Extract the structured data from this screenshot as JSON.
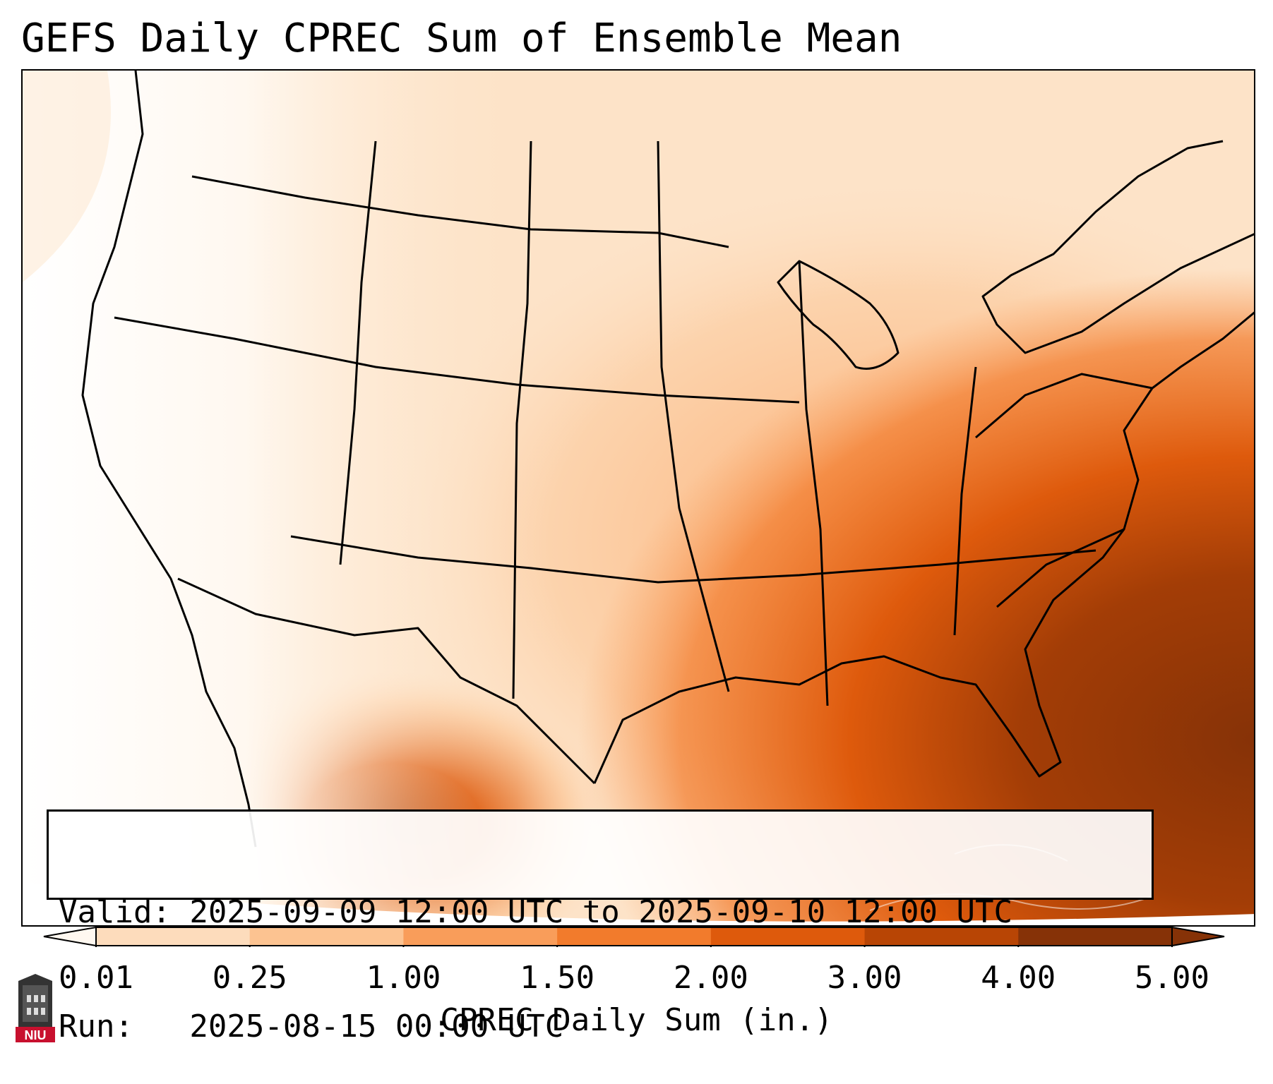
{
  "title": "GEFS Daily CPREC Sum of Ensemble Mean",
  "info": {
    "valid": "Valid: 2025-09-09 12:00 UTC to 2025-09-10 12:00 UTC",
    "run": "Run:   2025-08-15 00:00 UTC"
  },
  "colorbar": {
    "label": "CPREC Daily Sum (in.)",
    "ticks": [
      "0.01",
      "0.25",
      "1.00",
      "1.50",
      "2.00",
      "3.00",
      "4.00",
      "5.00"
    ],
    "colors": [
      "#fef0e2",
      "#fddcbc",
      "#fcc391",
      "#f99d5a",
      "#f27b2c",
      "#de5a0c",
      "#b84505",
      "#863207"
    ]
  },
  "logo": {
    "text": "NIU"
  }
}
